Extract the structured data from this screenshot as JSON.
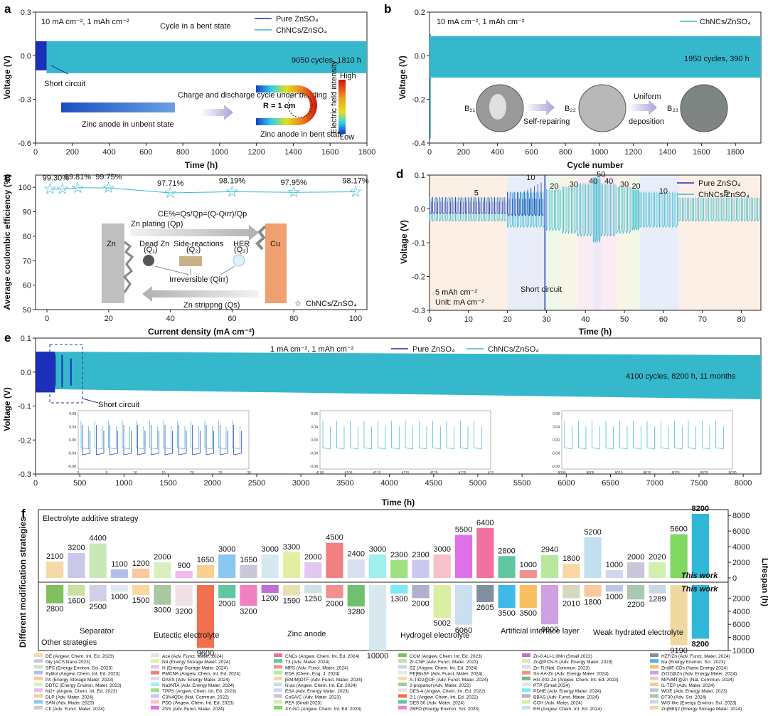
{
  "colors": {
    "pure": "#1b2fb8",
    "chnc": "#35b8cc",
    "grid": "#dddddd"
  },
  "chart_data": [
    {
      "id": "a",
      "type": "line",
      "panel": "a",
      "xlabel": "Time (h)",
      "ylabel": "Voltage (V)",
      "xlim": [
        0,
        1800
      ],
      "ylim": [
        -0.6,
        0.3
      ],
      "xticks": [
        0,
        200,
        400,
        600,
        800,
        1000,
        1200,
        1400,
        1600,
        1800
      ],
      "yticks": [
        -0.6,
        -0.3,
        0.0,
        0.3
      ],
      "condition": "10 mA cm⁻², 1 mAh cm⁻²",
      "title": "Cycle in a bent state",
      "legend": [
        "Pure ZnSO₄",
        "ChNCs/ZnSO₄"
      ],
      "annotations": {
        "cycles": "9050 cycles, 1810 h",
        "short": "Short circuit",
        "unbent": "Zinc anode in unbent state",
        "bending": "Charge and discharge cycle under bending",
        "radius": "R = 1 cm",
        "bent": "Zinc anode in bent state",
        "field": "Electric field intensity",
        "high": "High",
        "low": "Low"
      },
      "series": [
        {
          "name": "Pure ZnSO₄",
          "x_range": [
            0,
            60
          ],
          "band": [
            -0.1,
            0.1
          ]
        },
        {
          "name": "ChNCs/ZnSO₄",
          "x_range": [
            60,
            1810
          ],
          "band": [
            -0.12,
            0.1
          ]
        }
      ]
    },
    {
      "id": "b",
      "type": "line",
      "panel": "b",
      "xlabel": "Cycle number",
      "ylabel": "Voltage (V)",
      "xlim": [
        0,
        1950
      ],
      "ylim": [
        -0.4,
        0.2
      ],
      "xticks": [
        0,
        200,
        400,
        600,
        800,
        1000,
        1200,
        1400,
        1600,
        1800
      ],
      "yticks": [
        -0.4,
        -0.2,
        0.0,
        0.2
      ],
      "condition": "10 mA cm⁻², 1 mAh cm⁻²",
      "legend": [
        "ChNCs/ZnSO₄"
      ],
      "annotations": {
        "cycles": "1950 cycles, 390 h",
        "b21": "B₂₁",
        "b22": "B₂₂",
        "b23": "B₂₃",
        "repair": "Self-repairing",
        "uniform": "Uniform",
        "deposition": "deposition"
      },
      "series": [
        {
          "name": "ChNCs/ZnSO₄",
          "x_range": [
            0,
            1950
          ],
          "band": [
            -0.1,
            0.09
          ]
        }
      ]
    },
    {
      "id": "c",
      "type": "scatter",
      "panel": "c",
      "xlabel": "Current density (mA cm⁻²)",
      "ylabel": "Average coulombic efficiency (%)",
      "xlim": [
        0,
        100
      ],
      "ylim": [
        50,
        105
      ],
      "xticks": [
        0,
        20,
        40,
        60,
        80,
        100
      ],
      "yticks": [
        50,
        60,
        70,
        80,
        90,
        100
      ],
      "x": [
        1,
        5,
        10,
        20,
        40,
        60,
        80,
        100
      ],
      "y": [
        99.3,
        99.3,
        99.81,
        99.75,
        97.71,
        98.19,
        97.95,
        98.17
      ],
      "labels": [
        "99.30%",
        "99.81%",
        "99.75%",
        "97.71%",
        "98.19%",
        "97.95%",
        "98.17%"
      ],
      "label_index": [
        0,
        2,
        3,
        4,
        5,
        6,
        7
      ],
      "formula": "CE%=Qs/Qp=(Q-Qirr)/Qp",
      "legend": [
        "ChNCs/ZnSO₄"
      ],
      "schematic": {
        "zn": "Zn",
        "cu": "Cu",
        "plating": "Zn plating (Qp)",
        "stripping": "Zn strippng (Qs)",
        "dead": "Dead Zn",
        "dead_q": "(Q₁)",
        "side": "Side-reactions",
        "side_q": "(Q₂)",
        "her": "HER",
        "her_q": "(Q₃)",
        "irr": "Irreversible (Qirr)"
      }
    },
    {
      "id": "d",
      "type": "line",
      "panel": "d",
      "xlabel": "Time (h)",
      "ylabel": "Voltage (V)",
      "xlim": [
        0,
        85
      ],
      "ylim": [
        -0.3,
        0.1
      ],
      "xticks": [
        0,
        10,
        20,
        30,
        40,
        50,
        60,
        70,
        80
      ],
      "yticks": [
        -0.3,
        -0.2,
        -0.1,
        0.0,
        0.1
      ],
      "legend": [
        "Pure ZnSO₄",
        "ChNCs/ZnSO₄"
      ],
      "condition": "5 mAh cm⁻²",
      "unit": "Unit: mA cm⁻²",
      "short": "Short circuit",
      "rate_labels": [
        "5",
        "10",
        "20",
        "30",
        "40",
        "50",
        "40",
        "30",
        "20",
        "10",
        "5"
      ],
      "rate_label_x": [
        12,
        26,
        32,
        37,
        42,
        44,
        46,
        50,
        53,
        60,
        76
      ],
      "rate_label_y": [
        0.04,
        0.085,
        0.06,
        0.065,
        0.075,
        0.095,
        0.075,
        0.065,
        0.06,
        0.045,
        0.04
      ],
      "segments": [
        {
          "rate": "5",
          "x": [
            0,
            20
          ],
          "amp": 0.04
        },
        {
          "rate": "10",
          "x": [
            20,
            30
          ],
          "amp": 0.06
        },
        {
          "rate": "20",
          "x": [
            30,
            34
          ],
          "amp": 0.07
        },
        {
          "rate": "30",
          "x": [
            34,
            38
          ],
          "amp": 0.08
        },
        {
          "rate": "40",
          "x": [
            38,
            42
          ],
          "amp": 0.09
        },
        {
          "rate": "50",
          "x": [
            42,
            44
          ],
          "amp": 0.11
        },
        {
          "rate": "40",
          "x": [
            44,
            48
          ],
          "amp": 0.09
        },
        {
          "rate": "30",
          "x": [
            48,
            52
          ],
          "amp": 0.08
        },
        {
          "rate": "20",
          "x": [
            52,
            54
          ],
          "amp": 0.07
        },
        {
          "rate": "10",
          "x": [
            54,
            64
          ],
          "amp": 0.06
        },
        {
          "rate": "5",
          "x": [
            64,
            85
          ],
          "amp": 0.04
        }
      ]
    },
    {
      "id": "e",
      "type": "line",
      "panel": "e",
      "xlabel": "Time (h)",
      "ylabel": "Voltage (V)",
      "xlim": [
        0,
        8200
      ],
      "ylim": [
        -0.3,
        0.1
      ],
      "xticks": [
        0,
        500,
        1000,
        1500,
        2000,
        2500,
        3000,
        3500,
        4000,
        4500,
        5000,
        5500,
        6000,
        6500,
        7000,
        7500,
        8000
      ],
      "yticks": [
        -0.3,
        -0.2,
        -0.1,
        0.0,
        0.1
      ],
      "condition": "1 mA cm⁻², 1 mAh cm⁻²",
      "legend": [
        "Pure ZnSO₄",
        "ChNCs/ZnSO₄"
      ],
      "annotations": {
        "cycles": "4100 cycles, 8200 h, 11 months",
        "short": "Short circuit"
      },
      "insets": [
        {
          "xticks": [
            "0",
            "5",
            "10",
            "15",
            "20",
            "25",
            "30"
          ],
          "yticks": [
            "0.08",
            "0.04",
            "0.00",
            "-0.04",
            "-0.08"
          ]
        },
        {
          "xticks": [
            "4100",
            "4105",
            "4110",
            "4115",
            "4120",
            "4125",
            "413"
          ],
          "yticks": [
            "0.08",
            "0.04",
            "0.00",
            "-0.04",
            "-0.08"
          ]
        },
        {
          "xticks": [
            "8000",
            "8005",
            "8010",
            "8015",
            "8020",
            "8025",
            "8030"
          ],
          "yticks": [
            "0.08",
            "0.04",
            "0.00",
            "-0.04",
            "-0.08"
          ]
        }
      ]
    },
    {
      "id": "f",
      "type": "bar",
      "panel": "f",
      "ylabel": "Different modification strategies",
      "y2label": "Lifespan (h)",
      "top_title": "Electrolyte additive strategy",
      "bottom_title": "Other strategies",
      "top_ticks": [
        "0",
        "2000",
        "4000",
        "6000",
        "8000"
      ],
      "bottom_ticks": [
        "2000",
        "4000",
        "6000",
        "8000",
        "10000"
      ],
      "top_values": [
        2100,
        3200,
        4400,
        1100,
        1200,
        2000,
        900,
        1650,
        3000,
        1650,
        3000,
        3300,
        2000,
        4500,
        2400,
        3000,
        2300,
        2300,
        3000,
        5500,
        6400,
        2800,
        1000,
        2940,
        1800,
        5200,
        1000,
        2000,
        2020,
        5600,
        8200
      ],
      "bottom_values": [
        2800,
        1600,
        2500,
        1000,
        1500,
        3000,
        3200,
        9600,
        2000,
        3200,
        1200,
        1590,
        1250,
        2000,
        3280,
        10000,
        1300,
        2000,
        5002,
        6060,
        2605,
        3500,
        3500,
        6000,
        2010,
        1800,
        1000,
        2200,
        1289,
        9190,
        8200
      ],
      "this_work": "This work",
      "categories": [
        "Separator",
        "Eutectic electrolyte",
        "Zinc anode",
        "Hydrogel electrolyte",
        "Artificial interface layer",
        "Weak hydrated electrolyte"
      ],
      "legend_cols": [
        [
          "DE (Angew. Chem. Int. Ed. 2023)",
          "Gly (ACS Nano 2023)",
          "SPS (Energy Environ. Sci. 2023)",
          "Xylitol (Angew. Chem. Int. Ed. 2023)",
          "PA (Energy Storage Mater. 2023)",
          "DDTC (Energy Environ. Mater. 2023)",
          "Ni2+ (Angew. Chem. Int. Ed. 2023)",
          "DLP (Adv. Mater. 2024)",
          "SAN (Adv. Mater. 2023)",
          "CIt (Adv. Funct. Mater. 2024)"
        ],
        [
          "Ace (Adv. Funct. Mater. 2024)",
          "N4 (Energy Storage Mater. 2024)",
          "H (Energy Storage Mater. 2024)",
          "PMCNA (Angew. Chem. Int. Ed. 2024)",
          "DASS (Adv. Energy Mater. 2024)",
          "Na3NTA (Adv. Energy Mater. 2024)",
          "TPPS (Angew. Chem. Int. Ed. 2023)",
          "C3N4QDs (Nat. Commun. 2022)",
          "PDD (Angew. Chem. Int. Ed. 2023)",
          "ZSS (Adv. Funct. Mater. 2024)"
        ],
        [
          "CNCs (Angew. Chem. Int. Ed. 2024)",
          "T3 (Adv. Mater. 2024)",
          "MPS (Adv. Funct. Mater. 2024)",
          "EDA (Chem. Eng. J. 2024)",
          "[EMIM]OTF (Adv. Funct. Mater. 2024)",
          "N-ac (Angew. Chem. Int. Ed. 2024)",
          "ESA (Adv. Energy Mater. 2023)",
          "CoSA/C (Adv. Mater. 2023)",
          "PEA (Small 2023)",
          "XY-GO (Angew. Chem. Int. Ed. 2023)"
        ],
        [
          "CCM (Angew. Chem. Int. Ed. 2023)",
          "Zr-CNF (Adv. Funct. Mater. 2023)",
          "SZ (Angew. Chem. Int. Ed. 2024)",
          "PE|BisSF (Adv. Funct. Mater. 2024)",
          "A-TiO2@DF (Adv. Funct. Mater. 2024)",
          "2-propanol (Adv. Mater. 2022)",
          "DES-4 (Angew. Chem. Int. Ed. 2022)",
          "2:1 (Angew. Chem. Int. Ed. 2022)",
          "DES 50 (Adv. Mater. 2024)",
          "ZBFD (Energy Environ. Sci. 2023)"
        ],
        [
          "Zn-0.4Li-1.0Mn (Small 2022)",
          "Zn@PCN-S (Adv. Energy Mater. 2023)",
          "Zn-Ti (Nat. Commun. 2023)",
          "Sn-AA-Zn (Adv. Energy Mater. 2024)",
          "HG-002-Zn (Angew. Chem. Int. Ed. 2023)",
          "PTP (Small 2024)",
          "PDHE (Adv. Energy Mater. 2024)",
          "BBAS (Adv. Funct. Mater. 2024)",
          "CCH (Adv. Mater. 2024)",
          "EH (Angew. Chem. Int. Ed. 2024)"
        ],
        [
          "HZF/Zn (Adv. Funct. Mater. 2024)",
          "Na (Energy Environ. Sci. 2023)",
          "Zn@F-CDs (Nano Energy 2024)",
          "ZrO2@Zn (Adv. Energy Mater. 2024)",
          "MPVMT@Zn (Nat. Commun. 2024)",
          "IL-TEP (Adv. Mater. 2024)",
          "WOE (Adv. Energy Mater. 2023)",
          "DT30 (Adv. Sci. 2024)",
          "WIS-like (Energy Environ. Sci. 2023)",
          "Zn(BBI)2 (Energy Storage Mater. 2024)"
        ]
      ]
    }
  ]
}
